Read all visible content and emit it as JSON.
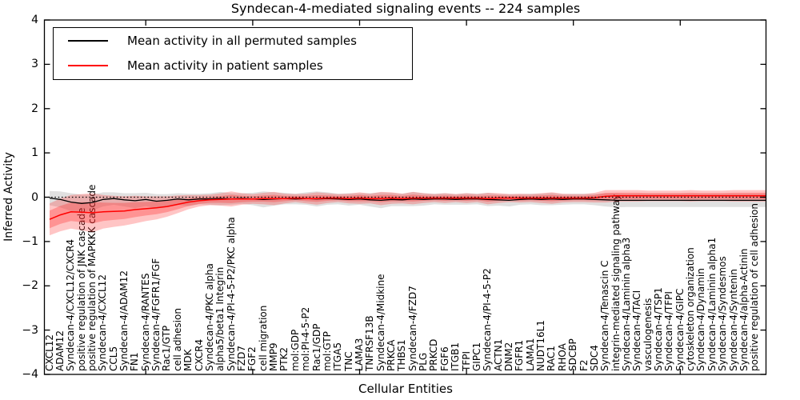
{
  "title": "Syndecan-4-mediated signaling events -- 224 samples",
  "axes": {
    "ylabel": "Inferred Activity",
    "xlabel": "Cellular Entities",
    "ytick_labels": [
      "4",
      "3",
      "2",
      "1",
      "0",
      "−1",
      "−2",
      "−3",
      "−4"
    ],
    "ytick_values": [
      4,
      3,
      2,
      1,
      0,
      -1,
      -2,
      -3,
      -4
    ],
    "ylim": [
      -4,
      4
    ]
  },
  "legend": {
    "items": [
      {
        "label": "Mean activity in all permuted samples",
        "color": "#000000"
      },
      {
        "label": "Mean activity in patient samples",
        "color": "#ff0000"
      }
    ]
  },
  "colors": {
    "permuted_line": "#000000",
    "patient_line": "#ff0000",
    "permuted_band": "rgba(0,0,0,0.12)",
    "patient_band": "rgba(255,45,45,0.28)",
    "patient_band_inner": "rgba(255,45,45,0.32)",
    "zero_line": "#000000",
    "frame": "#000000"
  },
  "chart_data": {
    "type": "line",
    "title": "Syndecan-4-mediated signaling events -- 224 samples",
    "xlabel": "Cellular Entities",
    "ylabel": "Inferred Activity",
    "ylim": [
      -4,
      4
    ],
    "grid": false,
    "legend_position": "upper left",
    "zero_line_y": 0,
    "categories": [
      "CXCL12",
      "ADAM12",
      "Syndecan-4/CXCL12/CXCR4",
      "positive regulation of JNK cascade",
      "positive regulation of MAPKKK cascade",
      "Syndecan-4/CXCL12",
      "CCL5",
      "Syndecan-4/ADAM12",
      "FN1",
      "Syndecan-4/RANTES",
      "Syndecan-4/FGFR1/FGF",
      "Rac1/GTP",
      "cell adhesion",
      "MDK",
      "CXCR4",
      "Syndecan-4/PKC alpha",
      "alpha5/beta1 Integrin",
      "Syndecan-4/PI-4-5-P2/PKC alpha",
      "FZD7",
      "FGF2",
      "cell migration",
      "MMP9",
      "PTK2",
      "mol:GDP",
      "mol:PI-4-5-P2",
      "Rac1/GDP",
      "mol:GTP",
      "ITGA5",
      "TNC",
      "LAMA3",
      "TNFRSF13B",
      "Syndecan-4/Midkine",
      "PRKCA",
      "THBS1",
      "Syndecan-4/FZD7",
      "PLG",
      "PRKCD",
      "FGF6",
      "ITGB1",
      "TFPI",
      "GIPC1",
      "Syndecan-4/PI-4-5-P2",
      "ACTN1",
      "DNM2",
      "FGFR1",
      "LAMA1",
      "NUDT16L1",
      "RAC1",
      "RHOA",
      "SDCBP",
      "F2",
      "SDC4",
      "Syndecan-4/Tenascin C",
      "integrin-mediated signaling pathway",
      "Syndecan-4/Laminin alpha3",
      "Syndecan-4/TACI",
      "vasculogenesis",
      "Syndecan-4/TSP1",
      "Syndecan-4/TFPI",
      "Syndecan-4/GIPC",
      "cytoskeleton organization",
      "Syndecan-4/Dynamin",
      "Syndecan-4/Laminin alpha1",
      "Syndecan-4/Syndesmos",
      "Syndecan-4/Syntenin",
      "Syndecan-4/alpha-Actinin",
      "positive regulation of cell adhesion"
    ],
    "series": [
      {
        "name": "Mean activity in all permuted samples",
        "color": "#000000",
        "values": [
          -0.02,
          -0.05,
          -0.11,
          -0.14,
          -0.12,
          -0.05,
          -0.03,
          -0.06,
          -0.08,
          -0.05,
          -0.09,
          -0.07,
          -0.04,
          -0.06,
          -0.04,
          -0.04,
          -0.03,
          -0.04,
          -0.03,
          -0.04,
          -0.05,
          -0.04,
          -0.03,
          -0.04,
          -0.03,
          -0.04,
          -0.03,
          -0.04,
          -0.05,
          -0.04,
          -0.06,
          -0.07,
          -0.05,
          -0.06,
          -0.04,
          -0.05,
          -0.04,
          -0.04,
          -0.05,
          -0.04,
          -0.04,
          -0.05,
          -0.06,
          -0.07,
          -0.05,
          -0.04,
          -0.05,
          -0.04,
          -0.05,
          -0.04,
          -0.04,
          -0.05,
          -0.06,
          -0.07,
          -0.07,
          -0.07,
          -0.07,
          -0.07,
          -0.07,
          -0.07,
          -0.07,
          -0.07,
          -0.07,
          -0.07,
          -0.07,
          -0.07,
          -0.07
        ],
        "band_halfwidth": [
          0.16,
          0.18,
          0.2,
          0.2,
          0.18,
          0.16,
          0.14,
          0.15,
          0.17,
          0.15,
          0.16,
          0.14,
          0.13,
          0.14,
          0.12,
          0.13,
          0.15,
          0.13,
          0.12,
          0.14,
          0.18,
          0.15,
          0.13,
          0.12,
          0.14,
          0.17,
          0.14,
          0.12,
          0.14,
          0.13,
          0.15,
          0.18,
          0.15,
          0.14,
          0.16,
          0.14,
          0.12,
          0.13,
          0.12,
          0.13,
          0.12,
          0.15,
          0.13,
          0.14,
          0.12,
          0.12,
          0.13,
          0.14,
          0.12,
          0.12,
          0.12,
          0.13,
          0.15,
          0.16,
          0.15,
          0.15,
          0.15,
          0.15,
          0.15,
          0.15,
          0.15,
          0.15,
          0.15,
          0.15,
          0.15,
          0.15,
          0.15
        ]
      },
      {
        "name": "Mean activity in patient samples",
        "color": "#ff0000",
        "values": [
          -0.5,
          -0.4,
          -0.33,
          -0.34,
          -0.35,
          -0.33,
          -0.32,
          -0.31,
          -0.28,
          -0.26,
          -0.24,
          -0.21,
          -0.16,
          -0.11,
          -0.08,
          -0.06,
          -0.05,
          -0.04,
          -0.04,
          -0.04,
          -0.03,
          -0.03,
          -0.03,
          -0.02,
          -0.03,
          -0.03,
          -0.02,
          -0.02,
          -0.03,
          -0.02,
          -0.03,
          -0.03,
          -0.02,
          -0.03,
          -0.02,
          -0.02,
          -0.02,
          -0.02,
          -0.02,
          -0.02,
          -0.02,
          -0.03,
          -0.02,
          -0.02,
          -0.02,
          -0.02,
          -0.02,
          -0.02,
          -0.02,
          -0.02,
          -0.02,
          -0.01,
          0.02,
          0.03,
          0.03,
          0.03,
          0.03,
          0.03,
          0.03,
          0.03,
          0.03,
          0.03,
          0.03,
          0.03,
          0.03,
          0.03,
          0.03
        ],
        "band_halfwidth": [
          0.36,
          0.37,
          0.38,
          0.41,
          0.44,
          0.38,
          0.35,
          0.33,
          0.31,
          0.28,
          0.26,
          0.23,
          0.2,
          0.16,
          0.13,
          0.12,
          0.14,
          0.17,
          0.13,
          0.11,
          0.13,
          0.15,
          0.11,
          0.09,
          0.11,
          0.14,
          0.11,
          0.09,
          0.11,
          0.13,
          0.11,
          0.15,
          0.13,
          0.11,
          0.14,
          0.11,
          0.09,
          0.11,
          0.09,
          0.11,
          0.09,
          0.13,
          0.11,
          0.09,
          0.1,
          0.09,
          0.11,
          0.13,
          0.1,
          0.09,
          0.09,
          0.11,
          0.14,
          0.13,
          0.13,
          0.13,
          0.12,
          0.12,
          0.12,
          0.12,
          0.13,
          0.12,
          0.12,
          0.12,
          0.13,
          0.13,
          0.13
        ]
      }
    ]
  }
}
